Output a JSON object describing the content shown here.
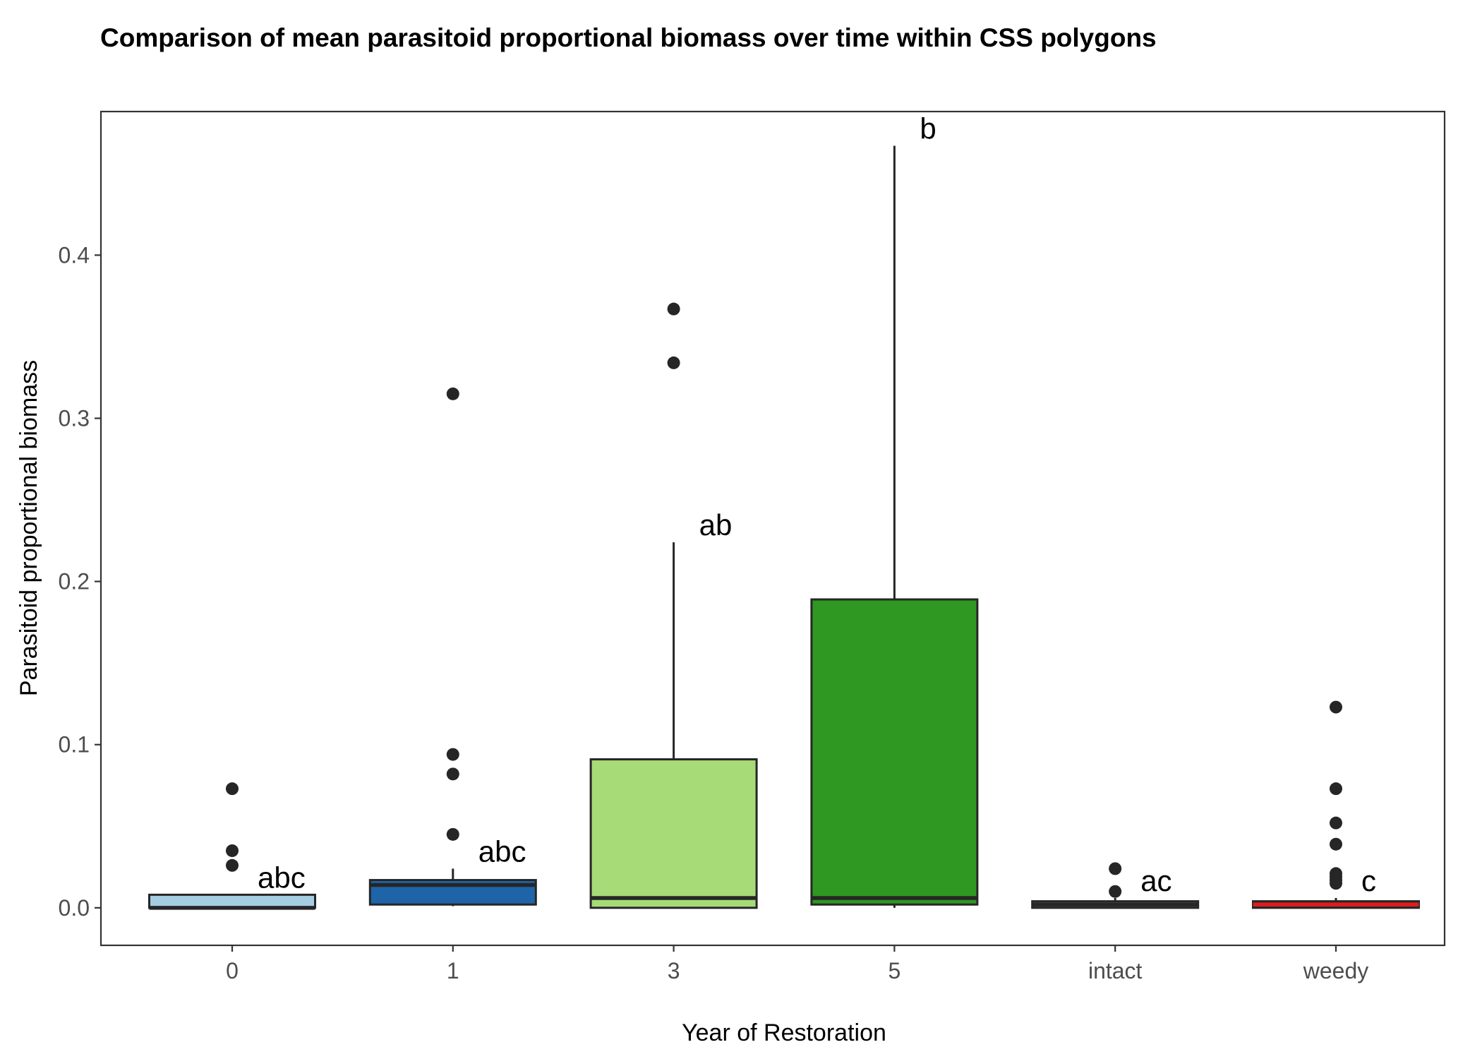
{
  "chart_data": {
    "type": "boxplot",
    "title": "Comparison of mean parasitoid proportional biomass over time within CSS polygons",
    "xlabel": "Year of Restoration",
    "ylabel": "Parasitoid proportional biomass",
    "ylim": [
      -0.023,
      0.488
    ],
    "yticks": [
      "0.0",
      "0.1",
      "0.2",
      "0.3",
      "0.4"
    ],
    "grid": false,
    "legend": "none",
    "categories": [
      "0",
      "1",
      "3",
      "5",
      "intact",
      "weedy"
    ],
    "boxes": [
      {
        "category": "0",
        "fill": "#a6cee3",
        "median_color": "#262626",
        "q1": 0.0,
        "median": 0.0,
        "q3": 0.008,
        "whisker_low": 0.0,
        "whisker_high": 0.008,
        "outliers": [
          0.026,
          0.035,
          0.073
        ],
        "letter": "abc"
      },
      {
        "category": "1",
        "fill": "#1f64a8",
        "median_color": "#262626",
        "q1": 0.002,
        "median": 0.014,
        "q3": 0.017,
        "whisker_low": 0.001,
        "whisker_high": 0.024,
        "outliers": [
          0.045,
          0.082,
          0.094,
          0.315
        ],
        "letter": "abc"
      },
      {
        "category": "3",
        "fill": "#a6db77",
        "median_color": "#262626",
        "q1": 0.0,
        "median": 0.006,
        "q3": 0.091,
        "whisker_low": 0.0,
        "whisker_high": 0.224,
        "outliers": [
          0.334,
          0.367
        ],
        "letter": "ab"
      },
      {
        "category": "5",
        "fill": "#2e9822",
        "median_color": "#262626",
        "q1": 0.002,
        "median": 0.006,
        "q3": 0.189,
        "whisker_low": 0.0,
        "whisker_high": 0.467,
        "outliers": [],
        "letter": "b"
      },
      {
        "category": "intact",
        "fill": "#595959",
        "median_color": "#262626",
        "q1": 0.0,
        "median": 0.002,
        "q3": 0.004,
        "whisker_low": 0.0,
        "whisker_high": 0.006,
        "outliers": [
          0.01,
          0.024
        ],
        "letter": "ac"
      },
      {
        "category": "weedy",
        "fill": "#4a3a3a",
        "median_color": "#e31a1c",
        "q1": 0.0,
        "median": 0.002,
        "q3": 0.004,
        "whisker_low": 0.0,
        "whisker_high": 0.006,
        "outliers": [
          0.015,
          0.017,
          0.019,
          0.021,
          0.039,
          0.052,
          0.073,
          0.123
        ],
        "letter": "c"
      }
    ]
  }
}
